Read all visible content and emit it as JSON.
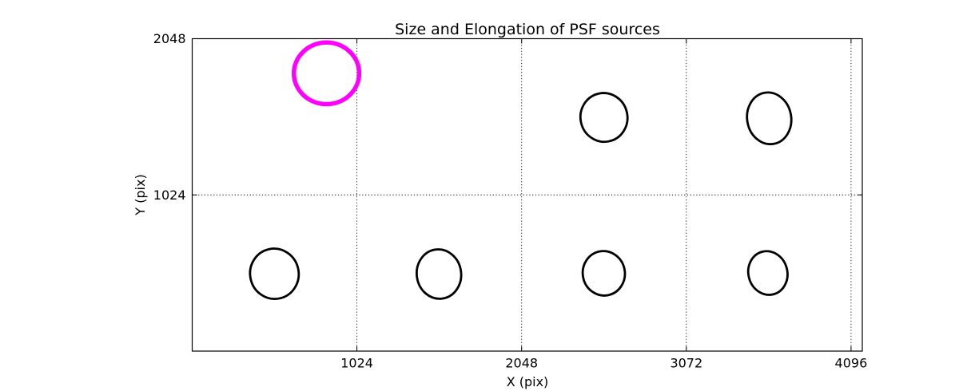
{
  "figure": {
    "background": "#ffffff"
  },
  "chart_data": {
    "type": "scatter",
    "title": "Size and Elongation of PSF sources",
    "xlabel": "X (pix)",
    "ylabel": "Y (pix)",
    "xlim": [
      0,
      4166
    ],
    "ylim": [
      0,
      2048
    ],
    "x_ticks": [
      1024,
      2048,
      3072,
      4096
    ],
    "y_ticks": [
      1024,
      2048
    ],
    "grid": {
      "visible": true,
      "linestyle": "dotted",
      "color": "#000000"
    },
    "axis_color": "#000000",
    "default_source_color": "#000000",
    "highlight_color": "#ff00ff",
    "sources": [
      {
        "x": 835,
        "y": 1821,
        "semi_x": 203,
        "semi_y": 202,
        "angle_deg": 0,
        "color": "#ff00ff",
        "stroke_px": 5.5,
        "highlighted": true
      },
      {
        "x": 2560,
        "y": 1532,
        "semi_x": 146,
        "semi_y": 160,
        "angle_deg": -12,
        "color": "#000000",
        "stroke_px": 2.8,
        "highlighted": false
      },
      {
        "x": 3587,
        "y": 1526,
        "semi_x": 137,
        "semi_y": 170,
        "angle_deg": -10,
        "color": "#000000",
        "stroke_px": 2.8,
        "highlighted": false
      },
      {
        "x": 511,
        "y": 507,
        "semi_x": 151,
        "semi_y": 165,
        "angle_deg": -12,
        "color": "#000000",
        "stroke_px": 2.8,
        "highlighted": false
      },
      {
        "x": 1534,
        "y": 505,
        "semi_x": 138,
        "semi_y": 162,
        "angle_deg": -8,
        "color": "#000000",
        "stroke_px": 2.8,
        "highlighted": false
      },
      {
        "x": 2559,
        "y": 510,
        "semi_x": 131,
        "semi_y": 146,
        "angle_deg": -10,
        "color": "#000000",
        "stroke_px": 2.8,
        "highlighted": false
      },
      {
        "x": 3579,
        "y": 512,
        "semi_x": 121,
        "semi_y": 144,
        "angle_deg": -15,
        "color": "#000000",
        "stroke_px": 2.8,
        "highlighted": false
      }
    ]
  }
}
